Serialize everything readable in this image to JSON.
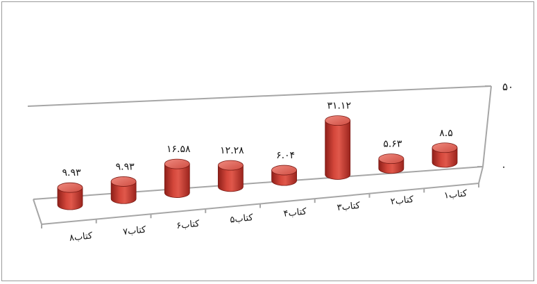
{
  "chart_data": {
    "type": "bar",
    "style": "3d-cylinder",
    "title": "",
    "xlabel": "",
    "ylabel": "",
    "categories": [
      "کتاب۱",
      "کتاب۲",
      "کتاب۳",
      "کتاب۴",
      "کتاب۵",
      "کتاب۶",
      "کتاب۷",
      "کتاب۸"
    ],
    "values": [
      8.5,
      5.63,
      31.12,
      6.04,
      12.28,
      16.58,
      9.93,
      9.93
    ],
    "data_labels": [
      "۸.۵",
      "۵.۶۳",
      "۳۱.۱۲",
      "۶.۰۴",
      "۱۲.۲۸",
      "۱۶.۵۸",
      "۹.۹۳",
      "۹.۹۳"
    ],
    "ylim": [
      0,
      50
    ],
    "y_tick_labels": [
      "۰",
      "۵۰"
    ],
    "x_direction": "right-to-left",
    "y_axis_position": "right",
    "grid": false,
    "legend": "none",
    "colors": {
      "bar_body": "#c0392f",
      "bar_top": "#e06a5e",
      "bar_dark": "#8e1f19",
      "axis": "#a6a6a6"
    }
  }
}
